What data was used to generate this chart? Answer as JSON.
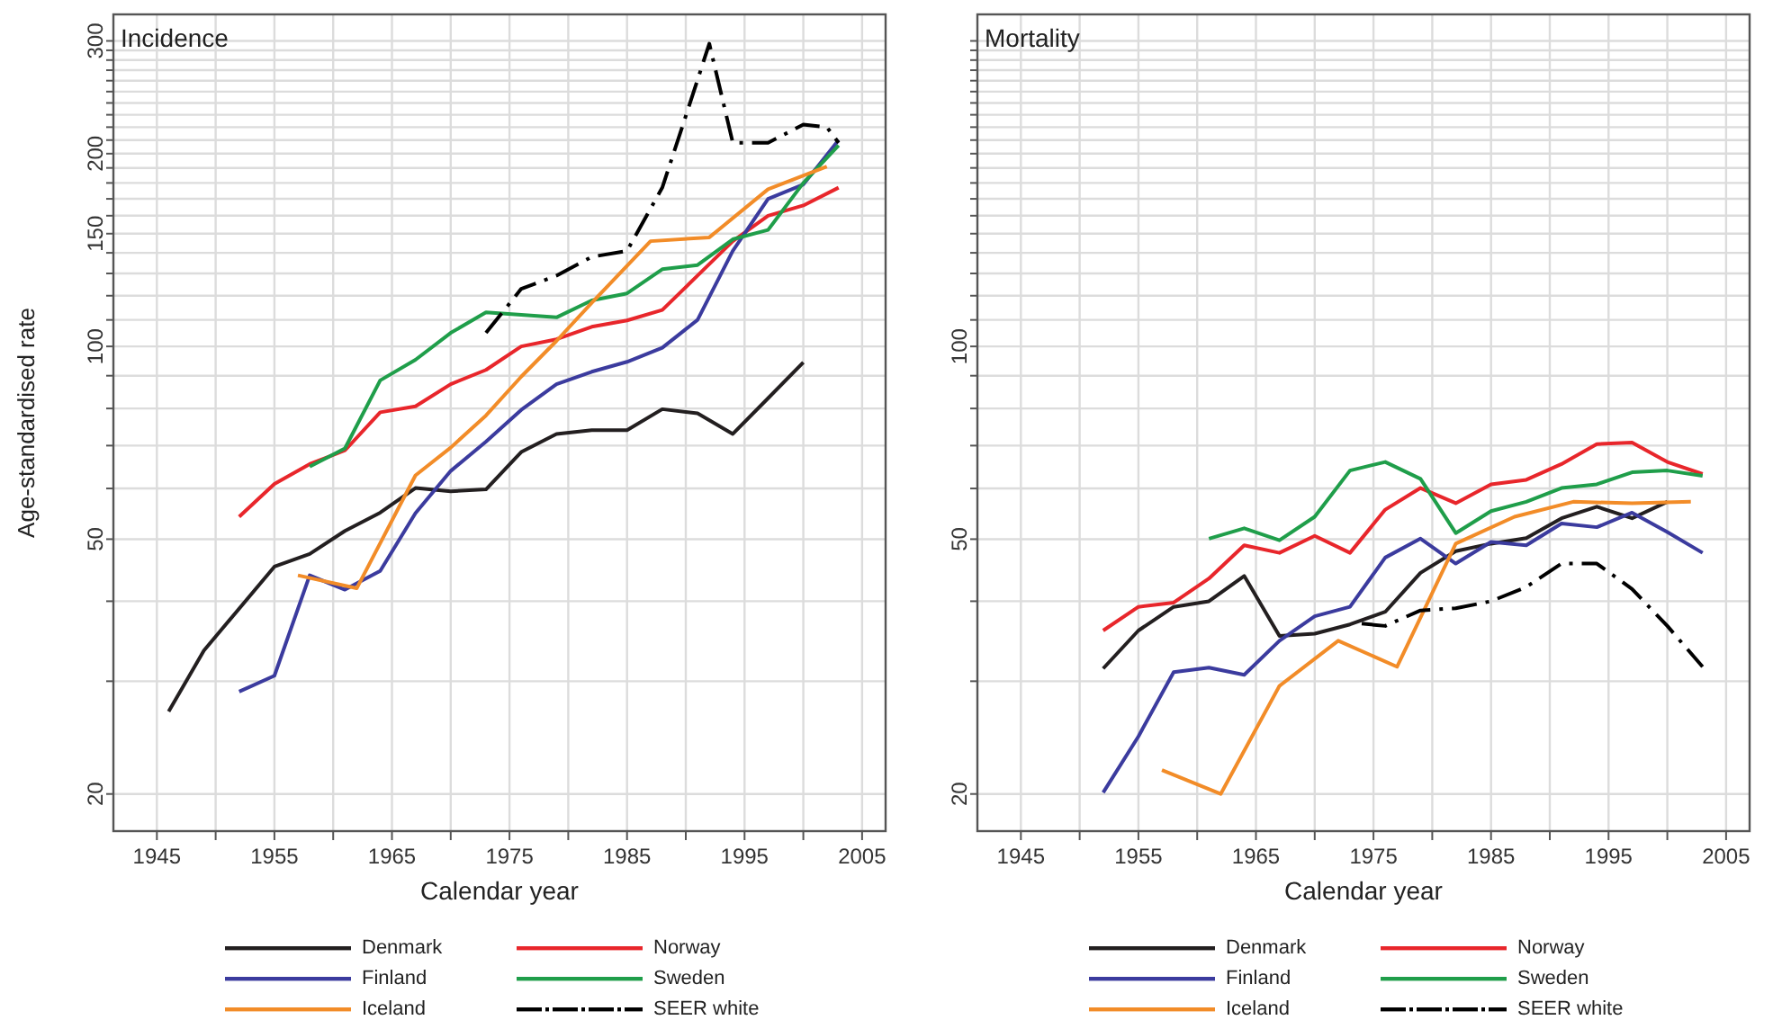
{
  "chart_data": [
    {
      "type": "line",
      "title": "Incidence",
      "xlabel": "Calendar year",
      "ylabel": "Age-standardised rate",
      "log": true,
      "grid": true,
      "legend": "bottom",
      "line_style": "solid",
      "marker": "none",
      "xlim": [
        1941.3,
        2007
      ],
      "xticks": [
        1945,
        {
          "value": 1950,
          "label": null
        },
        1955,
        {
          "value": 1960,
          "label": null
        },
        1965,
        {
          "value": 1970,
          "label": null
        },
        1975,
        {
          "value": 1980,
          "label": null
        },
        1985,
        {
          "value": 1990,
          "label": null
        },
        1995,
        {
          "value": 2000,
          "label": null
        },
        2005
      ],
      "ylim": [
        17.5,
        330
      ],
      "yticks": [
        20,
        {
          "value": 30,
          "label": null
        },
        {
          "value": 40,
          "label": null
        },
        50,
        {
          "value": 60,
          "label": null
        },
        {
          "value": 70,
          "label": null
        },
        {
          "value": 80,
          "label": null
        },
        {
          "value": 90,
          "label": null
        },
        100,
        {
          "value": 110,
          "label": null
        },
        {
          "value": 120,
          "label": null
        },
        {
          "value": 130,
          "label": null
        },
        {
          "value": 140,
          "label": null
        },
        150,
        {
          "value": 160,
          "label": null
        },
        {
          "value": 170,
          "label": null
        },
        {
          "value": 180,
          "label": null
        },
        {
          "value": 190,
          "label": null
        },
        200,
        {
          "value": 210,
          "label": null
        },
        {
          "value": 220,
          "label": null
        },
        {
          "value": 230,
          "label": null
        },
        {
          "value": 240,
          "label": null
        },
        {
          "value": 250,
          "label": null
        },
        {
          "value": 260,
          "label": null
        },
        {
          "value": 270,
          "label": null
        },
        {
          "value": 280,
          "label": null
        },
        {
          "value": 290,
          "label": null
        },
        300
      ],
      "series": [
        {
          "name": "Denmark",
          "color": "#231f20",
          "x": [
            1946,
            1949,
            1955,
            1958,
            1961,
            1964,
            1967,
            1970,
            1973,
            1976,
            1979,
            1982,
            1985,
            1988,
            1991,
            1994,
            1997,
            2000
          ],
          "values": [
            26.9,
            33.5,
            45.3,
            47.4,
            51.5,
            55,
            60.1,
            59.4,
            59.8,
            68.4,
            73,
            74,
            74,
            79.8,
            78.6,
            73,
            83,
            94.4
          ]
        },
        {
          "name": "Norway",
          "color": "#e8262b",
          "x": [
            1952,
            1955,
            1958,
            1961,
            1964,
            1967,
            1970,
            1973,
            1976,
            1979,
            1982,
            1985,
            1988,
            1991,
            1994,
            1997,
            2000,
            2003
          ],
          "values": [
            54.2,
            61,
            65.5,
            68.8,
            78.9,
            80.6,
            87.3,
            91.9,
            100,
            102.6,
            107.3,
            109.8,
            114,
            129,
            146,
            160,
            166,
            177
          ]
        },
        {
          "name": "Finland",
          "color": "#3b3b9e",
          "x": [
            1952,
            1955,
            1958,
            1961,
            1964,
            1967,
            1970,
            1973,
            1976,
            1979,
            1982,
            1985,
            1988,
            1991,
            1994,
            1997,
            2000,
            2003
          ],
          "values": [
            28.9,
            30.6,
            43.9,
            41.7,
            44.6,
            54.9,
            63.9,
            71,
            79.6,
            87.3,
            91.3,
            94.6,
            99.5,
            110,
            141,
            170,
            179,
            210
          ]
        },
        {
          "name": "Sweden",
          "color": "#1f9e4a",
          "x": [
            1958,
            1961,
            1964,
            1967,
            1970,
            1973,
            1976,
            1979,
            1982,
            1985,
            1988,
            1991,
            1994,
            1997,
            2000,
            2003
          ],
          "values": [
            64.9,
            69.3,
            88.5,
            95.3,
            105,
            113,
            112,
            111,
            118,
            121,
            132,
            134,
            147,
            152,
            180,
            206
          ]
        },
        {
          "name": "Iceland",
          "color": "#f28c28",
          "x": [
            1957,
            1962,
            1967,
            1970,
            1973,
            1976,
            1979,
            1982,
            1987,
            1992,
            1997,
            2002
          ],
          "values": [
            43.9,
            41.9,
            62.9,
            69.5,
            78,
            89.7,
            102,
            117,
            146,
            148,
            176,
            191
          ]
        },
        {
          "name": "SEER white",
          "color": "#000000",
          "line_style": "dashed",
          "x": [
            1973,
            1976,
            1979,
            1982,
            1985,
            1988,
            1990,
            1992,
            1994,
            1997,
            2000,
            2002,
            2003
          ],
          "values": [
            105,
            123,
            129,
            138,
            141,
            177,
            229,
            297,
            208,
            208,
            222,
            220,
            208
          ]
        }
      ]
    },
    {
      "type": "line",
      "title": "Mortality",
      "xlabel": "Calendar year",
      "log": true,
      "grid": true,
      "legend": "bottom",
      "line_style": "solid",
      "marker": "none",
      "xlim": [
        1941.3,
        2007
      ],
      "xticks": [
        1945,
        {
          "value": 1950,
          "label": null
        },
        1955,
        {
          "value": 1960,
          "label": null
        },
        1965,
        {
          "value": 1970,
          "label": null
        },
        1975,
        {
          "value": 1980,
          "label": null
        },
        1985,
        {
          "value": 1990,
          "label": null
        },
        1995,
        {
          "value": 2000,
          "label": null
        },
        2005
      ],
      "ylim": [
        17.5,
        330
      ],
      "yticks": [
        20,
        {
          "value": 30,
          "label": null
        },
        {
          "value": 40,
          "label": null
        },
        50,
        {
          "value": 60,
          "label": null
        },
        {
          "value": 70,
          "label": null
        },
        {
          "value": 80,
          "label": null
        },
        {
          "value": 90,
          "label": null
        },
        100,
        {
          "value": 110,
          "label": null
        },
        {
          "value": 120,
          "label": null
        },
        {
          "value": 130,
          "label": null
        },
        {
          "value": 140,
          "label": null
        },
        {
          "value": 150,
          "label": null
        },
        {
          "value": 160,
          "label": null
        },
        {
          "value": 170,
          "label": null
        },
        {
          "value": 180,
          "label": null
        },
        {
          "value": 190,
          "label": null
        },
        {
          "value": 200,
          "label": null
        },
        {
          "value": 210,
          "label": null
        },
        {
          "value": 220,
          "label": null
        },
        {
          "value": 230,
          "label": null
        },
        {
          "value": 240,
          "label": null
        },
        {
          "value": 250,
          "label": null
        },
        {
          "value": 260,
          "label": null
        },
        {
          "value": 270,
          "label": null
        },
        {
          "value": 280,
          "label": null
        },
        {
          "value": 290,
          "label": null
        },
        {
          "value": 300,
          "label": null
        }
      ],
      "series": [
        {
          "name": "Denmark",
          "color": "#231f20",
          "x": [
            1952,
            1955,
            1958,
            1961,
            1964,
            1967,
            1970,
            1973,
            1976,
            1979,
            1982,
            1985,
            1988,
            1991,
            1994,
            1997,
            2000
          ],
          "values": [
            31.4,
            36,
            39.2,
            40,
            43.8,
            35.3,
            35.6,
            36.8,
            38.5,
            44.3,
            47.9,
            49.2,
            50.2,
            53.9,
            56.2,
            53.9,
            57.2
          ]
        },
        {
          "name": "Norway",
          "color": "#e8262b",
          "x": [
            1952,
            1955,
            1958,
            1961,
            1964,
            1967,
            1970,
            1973,
            1976,
            1979,
            1982,
            1985,
            1988,
            1991,
            1994,
            1997,
            2000,
            2003
          ],
          "values": [
            36,
            39.2,
            39.8,
            43.4,
            48.9,
            47.6,
            50.6,
            47.6,
            55.6,
            60.1,
            56.9,
            60.9,
            61.9,
            65.5,
            70.4,
            70.8,
            66,
            63.2
          ]
        },
        {
          "name": "Finland",
          "color": "#3b3b9e",
          "x": [
            1952,
            1955,
            1958,
            1961,
            1964,
            1967,
            1970,
            1973,
            1976,
            1979,
            1982,
            1985,
            1988,
            1991,
            1994,
            1997,
            2000,
            2003
          ],
          "values": [
            20.1,
            24.6,
            31,
            31.5,
            30.7,
            34.7,
            37.9,
            39.2,
            46.8,
            50.1,
            45.8,
            49.5,
            48.9,
            52.9,
            52.2,
            55,
            51.3,
            47.6
          ]
        },
        {
          "name": "Sweden",
          "color": "#1f9e4a",
          "x": [
            1961,
            1964,
            1967,
            1970,
            1973,
            1976,
            1979,
            1982,
            1985,
            1988,
            1991,
            1994,
            1997,
            2000,
            2003
          ],
          "values": [
            50.1,
            52,
            49.8,
            54.2,
            64,
            66,
            62.1,
            51.1,
            55.3,
            57.2,
            60.1,
            60.9,
            63.6,
            64,
            62.8
          ]
        },
        {
          "name": "Iceland",
          "color": "#f28c28",
          "x": [
            1957,
            1962,
            1967,
            1972,
            1977,
            1982,
            1987,
            1992,
            1997,
            2002
          ],
          "values": [
            21.8,
            20,
            29.5,
            34.7,
            31.6,
            49.2,
            54.2,
            57.2,
            56.9,
            57.2
          ]
        },
        {
          "name": "SEER white",
          "color": "#000000",
          "line_style": "dashed",
          "x": [
            1974,
            1976,
            1979,
            1982,
            1985,
            1988,
            1991,
            1994,
            1997,
            2000,
            2003
          ],
          "values": [
            36.9,
            36.6,
            38.7,
            39,
            40,
            42.1,
            45.8,
            45.8,
            41.8,
            36.6,
            31.6
          ]
        }
      ]
    }
  ]
}
